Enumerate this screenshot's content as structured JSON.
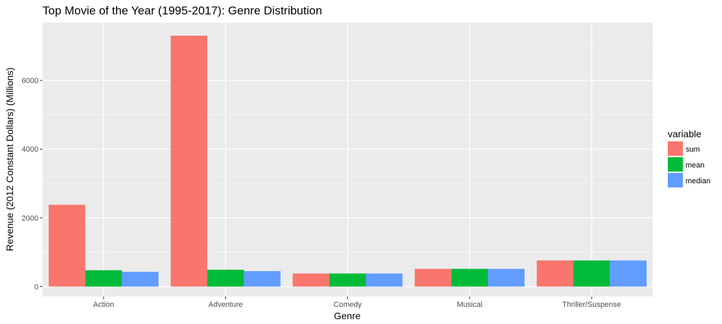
{
  "chart_data": {
    "type": "bar",
    "title": "Top Movie of the Year (1995-2017): Genre Distribution",
    "xlabel": "Genre",
    "ylabel": "Revenue (2012 Constant Dollars) (Millions)",
    "categories": [
      "Action",
      "Adventure",
      "Comedy",
      "Musical",
      "Thriller/Suspense"
    ],
    "series": [
      {
        "name": "sum",
        "color": "#F8766D",
        "values": [
          2380,
          7300,
          380,
          515,
          760
        ]
      },
      {
        "name": "mean",
        "color": "#00BA38",
        "values": [
          475,
          490,
          380,
          515,
          760
        ]
      },
      {
        "name": "median",
        "color": "#619CFF",
        "values": [
          430,
          450,
          380,
          515,
          760
        ]
      }
    ],
    "ylim": [
      -290,
      7680
    ],
    "yticks": [
      0,
      2000,
      4000,
      6000
    ],
    "ytick_labels": [
      "0",
      "2000",
      "4000",
      "6000"
    ],
    "legend": {
      "title": "variable",
      "placement": "right"
    },
    "grid": true,
    "panel_background": "#EBEBEB"
  }
}
